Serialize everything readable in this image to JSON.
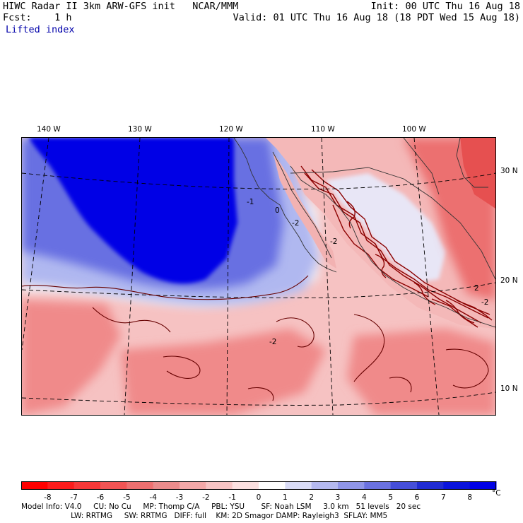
{
  "header": {
    "title": "HIWC Radar II 3km ARW-GFS init   NCAR/MMM",
    "fcst": "Fcst:    1 h",
    "field": "Lifted index",
    "init": "Init: 00 UTC Thu 16 Aug 18",
    "valid": "Valid: 01 UTC Thu 16 Aug 18 (18 PDT Wed 15 Aug 18)"
  },
  "map": {
    "longitude_labels": [
      "140 W",
      "130 W",
      "120 W",
      "110 W",
      "100 W"
    ],
    "latitude_labels": [
      "30 N",
      "20 N",
      "10 N"
    ],
    "contour_labels": [
      "-1",
      "0",
      "-2",
      "-2",
      "2",
      "-2",
      "-2"
    ],
    "colors": {
      "strong_positive": "#0000e6",
      "positive": "#4b58e8",
      "weak_positive": "#aab4f0",
      "neutral": "#f4f0f0",
      "weak_negative": "#f7c2c2",
      "negative": "#f28c8c",
      "strong_negative": "#e64a4a",
      "terrain_contour": "#8b0000"
    }
  },
  "colorbar": {
    "labels": [
      "-8",
      "-7",
      "-6",
      "-5",
      "-4",
      "-3",
      "-2",
      "-1",
      "0",
      "1",
      "2",
      "3",
      "4",
      "5",
      "6",
      "7",
      "8"
    ],
    "unit": "°C",
    "colors": [
      "#ff0000",
      "#fb1c1c",
      "#f73838",
      "#f25454",
      "#ee7070",
      "#ea8c8c",
      "#f2a8a8",
      "#f6c4c4",
      "#fbe0e0",
      "#ffffff",
      "#dadcf6",
      "#b5b9ef",
      "#9096e8",
      "#6b72e0",
      "#464fd9",
      "#212cd2",
      "#0a14dc",
      "#0000e6"
    ]
  },
  "footer": {
    "line1": "Model Info: V4.0     CU: No Cu     MP: Thomp C/A     PBL: YSU       SF: Noah LSM     3.0 km   51 levels   20 sec",
    "line2": "                     LW: RRTMG     SW: RRTMG   DIFF: full    KM: 2D Smagor DAMP: Rayleigh3  SFLAY: MM5"
  }
}
